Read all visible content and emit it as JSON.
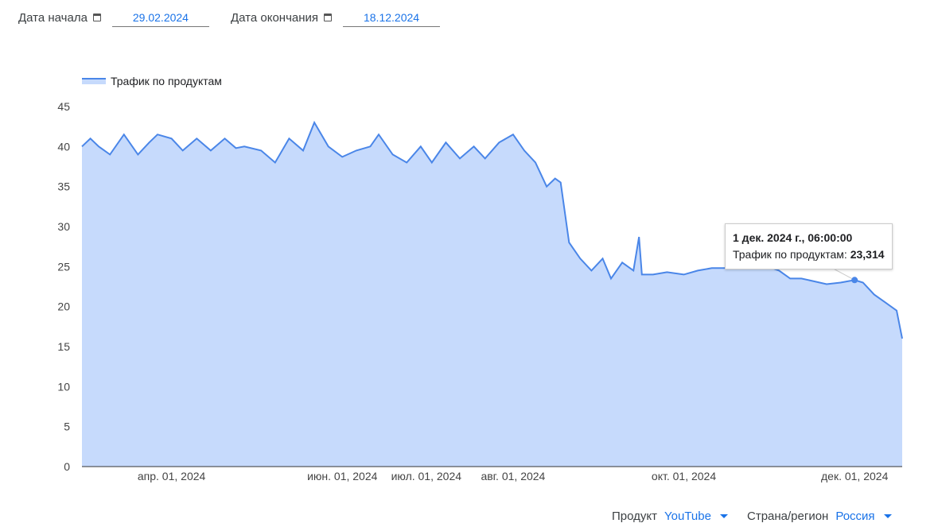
{
  "filters": {
    "start_label": "Дата начала",
    "start_value": "29.02.2024",
    "end_label": "Дата окончания",
    "end_value": "18.12.2024",
    "product_label": "Продукт",
    "product_value": "YouTube",
    "region_label": "Страна/регион",
    "region_value": "Россия"
  },
  "tooltip": {
    "title": "1 дек. 2024 г., 06:00:00",
    "series": "Трафик по продуктам:",
    "value": "23,314"
  },
  "chart_data": {
    "type": "area",
    "legend": "top-left",
    "series": [
      {
        "name": "Трафик по продуктам",
        "color": "#4a86e8",
        "fill": "#c6dafc"
      }
    ],
    "xlim": [
      "2024-02-29",
      "2024-12-18"
    ],
    "ylim": [
      0,
      45
    ],
    "yticks": [
      0,
      5,
      10,
      15,
      20,
      25,
      30,
      35,
      40,
      45
    ],
    "xticks": [
      {
        "date": "2024-04-01",
        "label": "апр. 01, 2024"
      },
      {
        "date": "2024-06-01",
        "label": "июн. 01, 2024"
      },
      {
        "date": "2024-07-01",
        "label": "июл. 01, 2024"
      },
      {
        "date": "2024-08-01",
        "label": "авг. 01, 2024"
      },
      {
        "date": "2024-10-01",
        "label": "окт. 01, 2024"
      },
      {
        "date": "2024-12-01",
        "label": "дек. 01, 2024"
      }
    ],
    "points": [
      [
        "2024-02-29",
        40
      ],
      [
        "2024-03-03",
        41
      ],
      [
        "2024-03-06",
        40
      ],
      [
        "2024-03-10",
        39
      ],
      [
        "2024-03-15",
        41.5
      ],
      [
        "2024-03-20",
        39
      ],
      [
        "2024-03-24",
        40.5
      ],
      [
        "2024-03-27",
        41.5
      ],
      [
        "2024-04-01",
        41
      ],
      [
        "2024-04-05",
        39.5
      ],
      [
        "2024-04-10",
        41
      ],
      [
        "2024-04-15",
        39.5
      ],
      [
        "2024-04-20",
        41
      ],
      [
        "2024-04-24",
        39.8
      ],
      [
        "2024-04-27",
        40
      ],
      [
        "2024-05-03",
        39.5
      ],
      [
        "2024-05-08",
        38
      ],
      [
        "2024-05-13",
        41
      ],
      [
        "2024-05-18",
        39.5
      ],
      [
        "2024-05-22",
        43
      ],
      [
        "2024-05-27",
        40
      ],
      [
        "2024-06-01",
        38.7
      ],
      [
        "2024-06-06",
        39.5
      ],
      [
        "2024-06-11",
        40
      ],
      [
        "2024-06-14",
        41.5
      ],
      [
        "2024-06-19",
        39
      ],
      [
        "2024-06-24",
        38
      ],
      [
        "2024-06-29",
        40
      ],
      [
        "2024-07-03",
        38
      ],
      [
        "2024-07-08",
        40.5
      ],
      [
        "2024-07-13",
        38.5
      ],
      [
        "2024-07-18",
        40
      ],
      [
        "2024-07-22",
        38.5
      ],
      [
        "2024-07-27",
        40.5
      ],
      [
        "2024-08-01",
        41.5
      ],
      [
        "2024-08-05",
        39.5
      ],
      [
        "2024-08-09",
        38
      ],
      [
        "2024-08-13",
        35
      ],
      [
        "2024-08-16",
        36
      ],
      [
        "2024-08-18",
        35.5
      ],
      [
        "2024-08-21",
        28
      ],
      [
        "2024-08-25",
        26
      ],
      [
        "2024-08-29",
        24.5
      ],
      [
        "2024-09-02",
        26
      ],
      [
        "2024-09-05",
        23.5
      ],
      [
        "2024-09-09",
        25.5
      ],
      [
        "2024-09-13",
        24.5
      ],
      [
        "2024-09-15",
        28.7
      ],
      [
        "2024-09-16",
        24
      ],
      [
        "2024-09-20",
        24
      ],
      [
        "2024-09-25",
        24.3
      ],
      [
        "2024-10-01",
        24
      ],
      [
        "2024-10-06",
        24.5
      ],
      [
        "2024-10-11",
        24.8
      ],
      [
        "2024-10-16",
        24.8
      ],
      [
        "2024-10-21",
        25
      ],
      [
        "2024-10-26",
        25.2
      ],
      [
        "2024-10-31",
        25
      ],
      [
        "2024-11-04",
        24.5
      ],
      [
        "2024-11-08",
        23.5
      ],
      [
        "2024-11-12",
        23.5
      ],
      [
        "2024-11-16",
        23.2
      ],
      [
        "2024-11-21",
        22.8
      ],
      [
        "2024-11-26",
        23
      ],
      [
        "2024-12-01",
        23.314
      ],
      [
        "2024-12-04",
        23
      ],
      [
        "2024-12-08",
        21.5
      ],
      [
        "2024-12-12",
        20.5
      ],
      [
        "2024-12-16",
        19.5
      ],
      [
        "2024-12-18",
        16
      ]
    ],
    "highlight": {
      "date": "2024-12-01",
      "value": 23.314
    }
  }
}
